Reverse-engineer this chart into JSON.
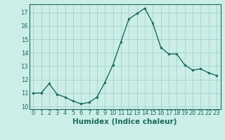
{
  "x": [
    0,
    1,
    2,
    3,
    4,
    5,
    6,
    7,
    8,
    9,
    10,
    11,
    12,
    13,
    14,
    15,
    16,
    17,
    18,
    19,
    20,
    21,
    22,
    23
  ],
  "y": [
    11.0,
    11.0,
    11.7,
    10.9,
    10.7,
    10.4,
    10.2,
    10.3,
    10.7,
    11.8,
    13.1,
    14.8,
    16.5,
    16.9,
    17.3,
    16.2,
    14.4,
    13.9,
    13.9,
    13.1,
    12.7,
    12.8,
    12.5,
    12.3
  ],
  "xlabel": "Humidex (Indice chaleur)",
  "ylim": [
    9.8,
    17.6
  ],
  "xlim": [
    -0.5,
    23.5
  ],
  "yticks": [
    10,
    11,
    12,
    13,
    14,
    15,
    16,
    17
  ],
  "xticks": [
    0,
    1,
    2,
    3,
    4,
    5,
    6,
    7,
    8,
    9,
    10,
    11,
    12,
    13,
    14,
    15,
    16,
    17,
    18,
    19,
    20,
    21,
    22,
    23
  ],
  "line_color": "#1a6b5a",
  "marker_color": "#1a6b5a",
  "bg_color": "#cceee8",
  "grid_color": "#aad4ce",
  "axis_color": "#1a6b5a",
  "tick_fontsize": 6.0,
  "xlabel_fontsize": 7.5
}
